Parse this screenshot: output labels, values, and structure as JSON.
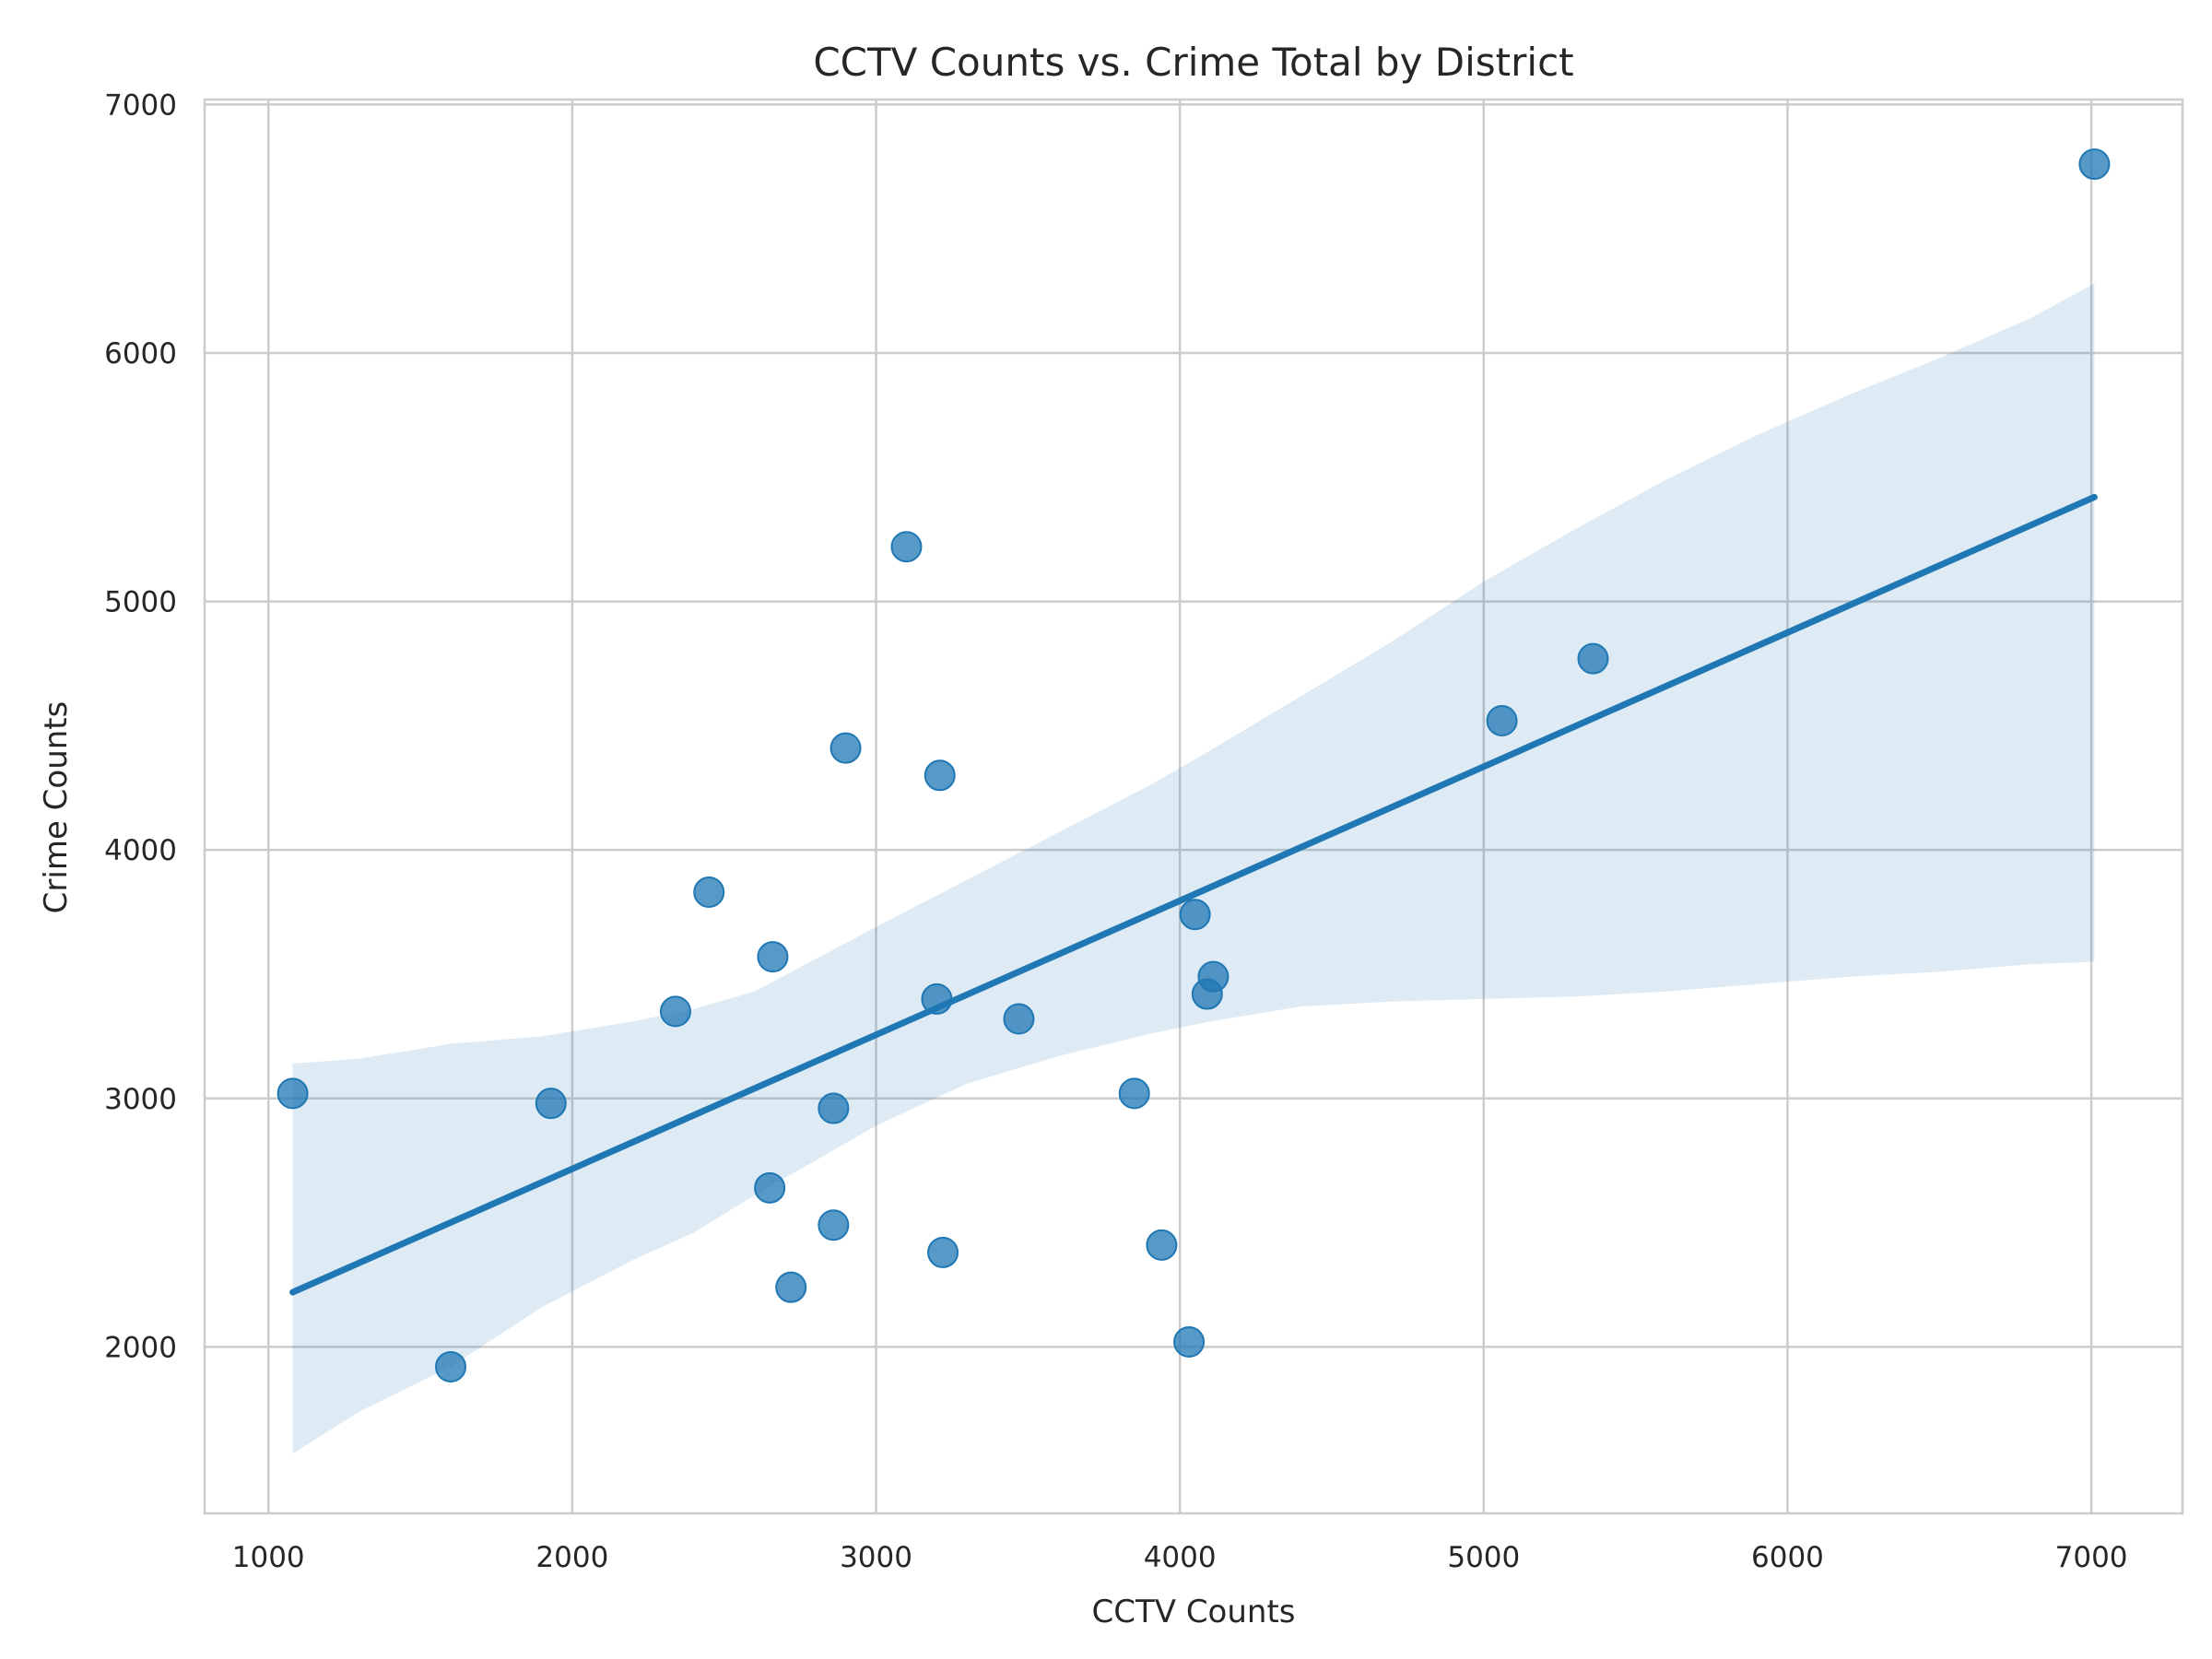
{
  "chart_data": {
    "type": "scatter",
    "title": "CCTV Counts vs. Crime Total by District",
    "xlabel": "CCTV Counts",
    "ylabel": "Crime Counts",
    "xlim": [
      790,
      7300
    ],
    "ylim": [
      1330,
      7020
    ],
    "x_ticks": [
      1000,
      2000,
      3000,
      4000,
      5000,
      6000,
      7000
    ],
    "y_ticks": [
      2000,
      3000,
      4000,
      5000,
      6000,
      7000
    ],
    "grid": true,
    "legend": "none",
    "colors": {
      "point": "#1f77b4",
      "line": "#1f77b4",
      "band": "#1f77b4",
      "grid": "#cccccc",
      "axis": "#cccccc",
      "text": "#262626",
      "background": "#ffffff"
    },
    "points": [
      {
        "x": 1080,
        "y": 3020
      },
      {
        "x": 1600,
        "y": 1920
      },
      {
        "x": 1930,
        "y": 2980
      },
      {
        "x": 2340,
        "y": 3350
      },
      {
        "x": 2450,
        "y": 3830
      },
      {
        "x": 2650,
        "y": 2640
      },
      {
        "x": 2660,
        "y": 3570
      },
      {
        "x": 2720,
        "y": 2240
      },
      {
        "x": 2860,
        "y": 2960
      },
      {
        "x": 2860,
        "y": 2490
      },
      {
        "x": 2900,
        "y": 4410
      },
      {
        "x": 3100,
        "y": 5220
      },
      {
        "x": 3200,
        "y": 3400
      },
      {
        "x": 3210,
        "y": 4300
      },
      {
        "x": 3220,
        "y": 2380
      },
      {
        "x": 3470,
        "y": 3320
      },
      {
        "x": 3850,
        "y": 3020
      },
      {
        "x": 3940,
        "y": 2410
      },
      {
        "x": 4030,
        "y": 2020
      },
      {
        "x": 4050,
        "y": 3740
      },
      {
        "x": 4090,
        "y": 3420
      },
      {
        "x": 4110,
        "y": 3490
      },
      {
        "x": 5060,
        "y": 4520
      },
      {
        "x": 5360,
        "y": 4770
      },
      {
        "x": 7010,
        "y": 6760
      }
    ],
    "regression": {
      "x": [
        1080,
        7010
      ],
      "y": [
        2220,
        5420
      ]
    },
    "confidence_band": {
      "upper": [
        [
          1080,
          3140
        ],
        [
          1300,
          3160
        ],
        [
          1600,
          3220
        ],
        [
          1900,
          3250
        ],
        [
          2200,
          3310
        ],
        [
          2400,
          3360
        ],
        [
          2600,
          3430
        ],
        [
          2800,
          3560
        ],
        [
          3000,
          3690
        ],
        [
          3300,
          3880
        ],
        [
          3600,
          4070
        ],
        [
          3900,
          4260
        ],
        [
          4100,
          4400
        ],
        [
          4400,
          4620
        ],
        [
          4700,
          4840
        ],
        [
          5000,
          5080
        ],
        [
          5300,
          5290
        ],
        [
          5600,
          5490
        ],
        [
          5900,
          5670
        ],
        [
          6200,
          5830
        ],
        [
          6500,
          5980
        ],
        [
          6800,
          6140
        ],
        [
          7010,
          6280
        ]
      ],
      "lower": [
        [
          1080,
          1570
        ],
        [
          1300,
          1740
        ],
        [
          1600,
          1920
        ],
        [
          1900,
          2160
        ],
        [
          2200,
          2350
        ],
        [
          2400,
          2460
        ],
        [
          2600,
          2610
        ],
        [
          2800,
          2750
        ],
        [
          3000,
          2890
        ],
        [
          3300,
          3060
        ],
        [
          3600,
          3170
        ],
        [
          3900,
          3260
        ],
        [
          4100,
          3310
        ],
        [
          4400,
          3370
        ],
        [
          4700,
          3390
        ],
        [
          5000,
          3400
        ],
        [
          5300,
          3410
        ],
        [
          5600,
          3430
        ],
        [
          5900,
          3460
        ],
        [
          6200,
          3490
        ],
        [
          6500,
          3510
        ],
        [
          6800,
          3540
        ],
        [
          7010,
          3550
        ]
      ]
    }
  }
}
